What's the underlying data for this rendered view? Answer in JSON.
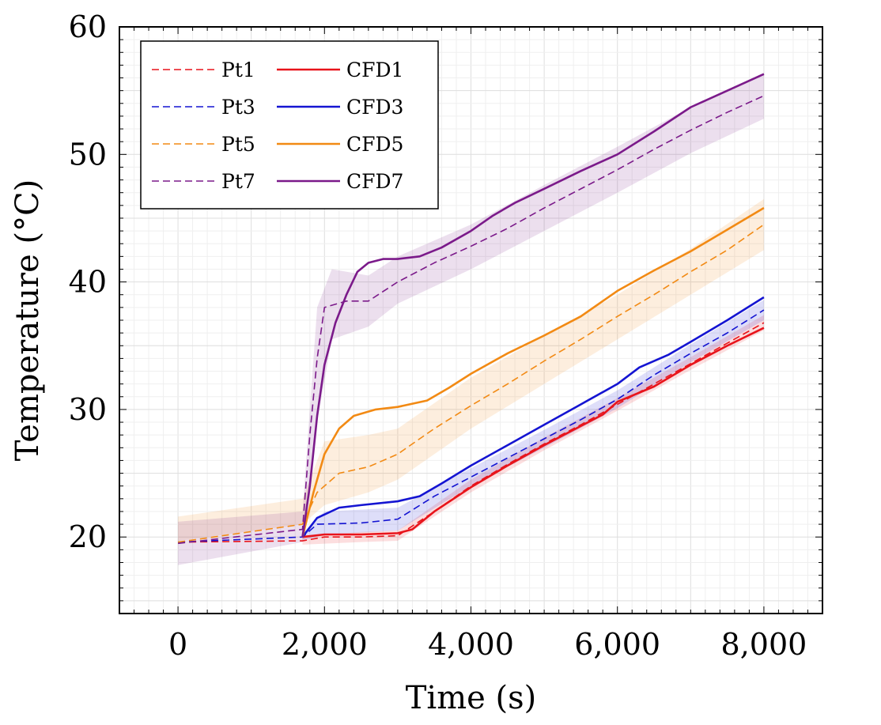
{
  "chart_data": {
    "type": "line",
    "xlabel": "Time (s)",
    "ylabel": "Temperature (°C)",
    "xlim": [
      -800,
      8800
    ],
    "ylim": [
      14,
      60
    ],
    "xticks": [
      0,
      2000,
      4000,
      6000,
      8000
    ],
    "xtick_labels": [
      "0",
      "2,000",
      "4,000",
      "6,000",
      "8,000"
    ],
    "yticks": [
      20,
      30,
      40,
      50,
      60
    ],
    "ytick_labels": [
      "20",
      "30",
      "40",
      "50",
      "60"
    ],
    "grid": true,
    "legend_position": "top-left",
    "legend": [
      {
        "label": "Pt1",
        "color": "#e8141b",
        "style": "dashed"
      },
      {
        "label": "CFD1",
        "color": "#e8141b",
        "style": "solid"
      },
      {
        "label": "Pt3",
        "color": "#1414d2",
        "style": "dashed"
      },
      {
        "label": "CFD3",
        "color": "#1414d2",
        "style": "solid"
      },
      {
        "label": "Pt5",
        "color": "#f28a14",
        "style": "dashed"
      },
      {
        "label": "CFD5",
        "color": "#f28a14",
        "style": "solid"
      },
      {
        "label": "Pt7",
        "color": "#7b1a8a",
        "style": "dashed"
      },
      {
        "label": "CFD7",
        "color": "#7b1a8a",
        "style": "solid"
      }
    ],
    "series": [
      {
        "name": "Pt1",
        "style": "dashed",
        "color": "#e8141b",
        "points": [
          [
            0,
            19.6
          ],
          [
            1700,
            19.7
          ],
          [
            2000,
            20.0
          ],
          [
            2500,
            20.0
          ],
          [
            3000,
            20.1
          ],
          [
            3500,
            22.0
          ],
          [
            4000,
            24.0
          ],
          [
            4500,
            25.7
          ],
          [
            5000,
            27.3
          ],
          [
            5500,
            28.8
          ],
          [
            6000,
            30.4
          ],
          [
            6500,
            32.0
          ],
          [
            7000,
            33.6
          ],
          [
            7500,
            35.2
          ],
          [
            8000,
            36.8
          ]
        ]
      },
      {
        "name": "Pt3",
        "style": "dashed",
        "color": "#1414d2",
        "points": [
          [
            0,
            19.6
          ],
          [
            1700,
            20.0
          ],
          [
            1900,
            21.0
          ],
          [
            2500,
            21.1
          ],
          [
            3000,
            21.4
          ],
          [
            3500,
            23.2
          ],
          [
            4000,
            24.7
          ],
          [
            4500,
            26.2
          ],
          [
            5000,
            27.7
          ],
          [
            5500,
            29.2
          ],
          [
            6000,
            30.8
          ],
          [
            6500,
            32.7
          ],
          [
            7000,
            34.4
          ],
          [
            7500,
            36.0
          ],
          [
            8000,
            37.8
          ]
        ]
      },
      {
        "name": "Pt5",
        "style": "dashed",
        "color": "#f28a14",
        "points": [
          [
            0,
            19.6
          ],
          [
            1700,
            21.0
          ],
          [
            1900,
            23.5
          ],
          [
            2200,
            25.0
          ],
          [
            2600,
            25.5
          ],
          [
            3000,
            26.5
          ],
          [
            3500,
            28.5
          ],
          [
            4000,
            30.3
          ],
          [
            4500,
            32.0
          ],
          [
            5000,
            33.8
          ],
          [
            5500,
            35.5
          ],
          [
            6000,
            37.3
          ],
          [
            6500,
            39.0
          ],
          [
            7000,
            40.8
          ],
          [
            7500,
            42.5
          ],
          [
            8000,
            44.5
          ]
        ]
      },
      {
        "name": "Pt7",
        "style": "dashed",
        "color": "#7b1a8a",
        "points": [
          [
            0,
            19.5
          ],
          [
            1700,
            20.6
          ],
          [
            1800,
            28.0
          ],
          [
            1900,
            34.0
          ],
          [
            2000,
            38.0
          ],
          [
            2300,
            38.5
          ],
          [
            2600,
            38.5
          ],
          [
            3000,
            40.0
          ],
          [
            3500,
            41.5
          ],
          [
            4000,
            42.8
          ],
          [
            4500,
            44.2
          ],
          [
            5000,
            45.8
          ],
          [
            5500,
            47.3
          ],
          [
            6000,
            48.8
          ],
          [
            6500,
            50.4
          ],
          [
            7000,
            51.9
          ],
          [
            7500,
            53.3
          ],
          [
            8000,
            54.6
          ]
        ]
      },
      {
        "name": "CFD1",
        "style": "solid",
        "color": "#e8141b",
        "points": [
          [
            1700,
            20.0
          ],
          [
            2000,
            20.2
          ],
          [
            2500,
            20.2
          ],
          [
            3000,
            20.3
          ],
          [
            3200,
            20.6
          ],
          [
            3500,
            22.0
          ],
          [
            4000,
            23.9
          ],
          [
            4500,
            25.6
          ],
          [
            5000,
            27.2
          ],
          [
            5500,
            28.7
          ],
          [
            5800,
            29.6
          ],
          [
            6000,
            30.6
          ],
          [
            6500,
            31.8
          ],
          [
            7000,
            33.5
          ],
          [
            7500,
            35.0
          ],
          [
            8000,
            36.4
          ]
        ]
      },
      {
        "name": "CFD3",
        "style": "solid",
        "color": "#1414d2",
        "points": [
          [
            1700,
            20.0
          ],
          [
            1900,
            21.5
          ],
          [
            2200,
            22.3
          ],
          [
            2500,
            22.5
          ],
          [
            3000,
            22.8
          ],
          [
            3300,
            23.2
          ],
          [
            3600,
            24.2
          ],
          [
            4000,
            25.6
          ],
          [
            4500,
            27.2
          ],
          [
            5000,
            28.8
          ],
          [
            5500,
            30.4
          ],
          [
            6000,
            32.0
          ],
          [
            6300,
            33.3
          ],
          [
            6700,
            34.3
          ],
          [
            7000,
            35.3
          ],
          [
            7500,
            37.0
          ],
          [
            8000,
            38.8
          ]
        ]
      },
      {
        "name": "CFD5",
        "style": "solid",
        "color": "#f28a14",
        "points": [
          [
            1700,
            20.0
          ],
          [
            1850,
            23.5
          ],
          [
            2000,
            26.5
          ],
          [
            2200,
            28.5
          ],
          [
            2400,
            29.5
          ],
          [
            2700,
            30.0
          ],
          [
            3000,
            30.2
          ],
          [
            3400,
            30.7
          ],
          [
            3700,
            31.7
          ],
          [
            4000,
            32.8
          ],
          [
            4500,
            34.4
          ],
          [
            5000,
            35.8
          ],
          [
            5500,
            37.3
          ],
          [
            6000,
            39.3
          ],
          [
            6500,
            40.9
          ],
          [
            7000,
            42.4
          ],
          [
            7500,
            44.1
          ],
          [
            8000,
            45.8
          ]
        ]
      },
      {
        "name": "CFD7",
        "style": "solid",
        "color": "#7b1a8a",
        "points": [
          [
            1700,
            20.0
          ],
          [
            1800,
            24.0
          ],
          [
            1900,
            29.5
          ],
          [
            2000,
            33.5
          ],
          [
            2150,
            36.8
          ],
          [
            2300,
            39.0
          ],
          [
            2450,
            40.8
          ],
          [
            2600,
            41.5
          ],
          [
            2800,
            41.8
          ],
          [
            3000,
            41.8
          ],
          [
            3300,
            42.0
          ],
          [
            3600,
            42.7
          ],
          [
            4000,
            44.0
          ],
          [
            4300,
            45.2
          ],
          [
            4600,
            46.2
          ],
          [
            5000,
            47.3
          ],
          [
            5500,
            48.7
          ],
          [
            6000,
            50.0
          ],
          [
            6500,
            51.8
          ],
          [
            7000,
            53.7
          ],
          [
            7500,
            55.0
          ],
          [
            8000,
            56.3
          ]
        ]
      }
    ],
    "bands": [
      {
        "series": "Pt1",
        "color": "#e8141b",
        "points": [
          [
            1700,
            19.4,
            20.0
          ],
          [
            2500,
            19.6,
            20.4
          ],
          [
            3000,
            19.7,
            20.5
          ],
          [
            4000,
            23.5,
            24.5
          ],
          [
            5000,
            26.8,
            27.8
          ],
          [
            6000,
            29.9,
            30.9
          ],
          [
            7000,
            33.1,
            34.1
          ],
          [
            8000,
            36.2,
            37.4
          ]
        ]
      },
      {
        "series": "Pt3",
        "color": "#1414d2",
        "points": [
          [
            1700,
            19.7,
            20.3
          ],
          [
            2000,
            20.2,
            22.0
          ],
          [
            3000,
            20.5,
            22.3
          ],
          [
            4000,
            24.0,
            25.4
          ],
          [
            5000,
            27.0,
            28.4
          ],
          [
            6000,
            30.1,
            31.5
          ],
          [
            7000,
            33.7,
            35.1
          ],
          [
            8000,
            37.0,
            38.6
          ]
        ]
      },
      {
        "series": "Pt5",
        "color": "#f28a14",
        "points": [
          [
            0,
            19.7,
            21.6
          ],
          [
            1700,
            21.0,
            23.0
          ],
          [
            2000,
            22.5,
            27.5
          ],
          [
            2600,
            23.5,
            28.0
          ],
          [
            3000,
            24.5,
            28.5
          ],
          [
            4000,
            28.5,
            32.5
          ],
          [
            5000,
            32.0,
            35.8
          ],
          [
            6000,
            35.5,
            39.0
          ],
          [
            7000,
            39.0,
            42.6
          ],
          [
            8000,
            42.5,
            46.5
          ]
        ]
      },
      {
        "series": "Pt7",
        "color": "#7b1a8a",
        "points": [
          [
            0,
            17.8,
            21.2
          ],
          [
            1700,
            19.6,
            22.0
          ],
          [
            1900,
            29.0,
            38.0
          ],
          [
            2100,
            35.5,
            41.0
          ],
          [
            2600,
            36.5,
            40.5
          ],
          [
            3000,
            38.3,
            42.0
          ],
          [
            4000,
            41.0,
            44.5
          ],
          [
            5000,
            44.0,
            47.6
          ],
          [
            6000,
            47.0,
            50.6
          ],
          [
            7000,
            50.1,
            53.7
          ],
          [
            8000,
            52.8,
            56.4
          ]
        ]
      }
    ]
  }
}
